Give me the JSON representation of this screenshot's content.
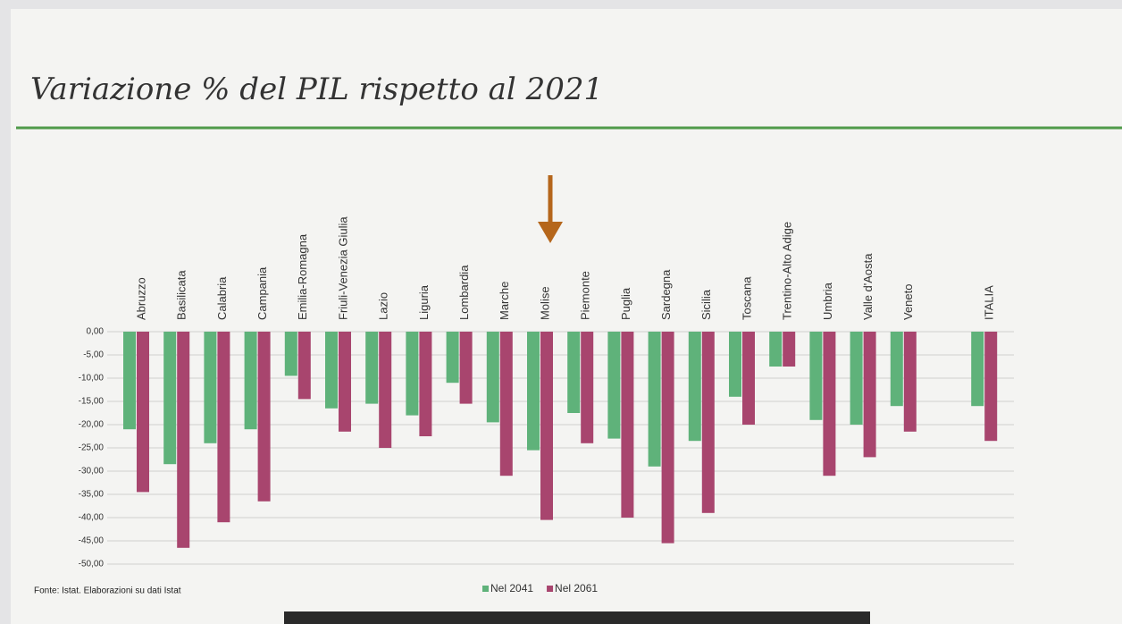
{
  "chart_data": {
    "type": "bar",
    "title": "Variazione % del PIL rispetto al 2021",
    "source": "Fonte: Istat. Elaborazioni su dati Istat",
    "categories": [
      "Abruzzo",
      "Basilicata",
      "Calabria",
      "Campania",
      "Emilia-Romagna",
      "Friuli-Venezia Giulia",
      "Lazio",
      "Liguria",
      "Lombardia",
      "Marche",
      "Molise",
      "Piemonte",
      "Puglia",
      "Sardegna",
      "Sicilia",
      "Toscana",
      "Trentino-Alto Adige",
      "Umbria",
      "Valle d'Aosta",
      "Veneto",
      null,
      "ITALIA"
    ],
    "series": [
      {
        "name": "Nel 2041",
        "color": "#5fb27a",
        "values": [
          -21,
          -28.5,
          -24,
          -21,
          -9.5,
          -16.5,
          -15.5,
          -18,
          -11,
          -19.5,
          -25.5,
          -17.5,
          -23,
          -29,
          -23.5,
          -14,
          -7.5,
          -19,
          -20,
          -16,
          null,
          -16
        ]
      },
      {
        "name": "Nel 2061",
        "color": "#a8456e",
        "values": [
          -34.5,
          -46.5,
          -41,
          -36.5,
          -14.5,
          -21.5,
          -25,
          -22.5,
          -15.5,
          -31,
          -40.5,
          -24,
          -40,
          -45.5,
          -39,
          -20,
          -7.5,
          -31,
          -27,
          -21.5,
          null,
          -23.5
        ]
      }
    ],
    "ylim": [
      -50,
      0
    ],
    "yticks": [
      {
        "value": 0,
        "label": "0,00"
      },
      {
        "value": -5,
        "label": "-5,00"
      },
      {
        "value": -10,
        "label": "-10,00"
      },
      {
        "value": -15,
        "label": "-15,00"
      },
      {
        "value": -20,
        "label": "-20,00"
      },
      {
        "value": -25,
        "label": "-25,00"
      },
      {
        "value": -30,
        "label": "-30,00"
      },
      {
        "value": -35,
        "label": "-35,00"
      },
      {
        "value": -40,
        "label": "-40,00"
      },
      {
        "value": -45,
        "label": "-45,00"
      },
      {
        "value": -50,
        "label": "-50,00"
      }
    ],
    "grid": true,
    "legend": "bottom"
  }
}
